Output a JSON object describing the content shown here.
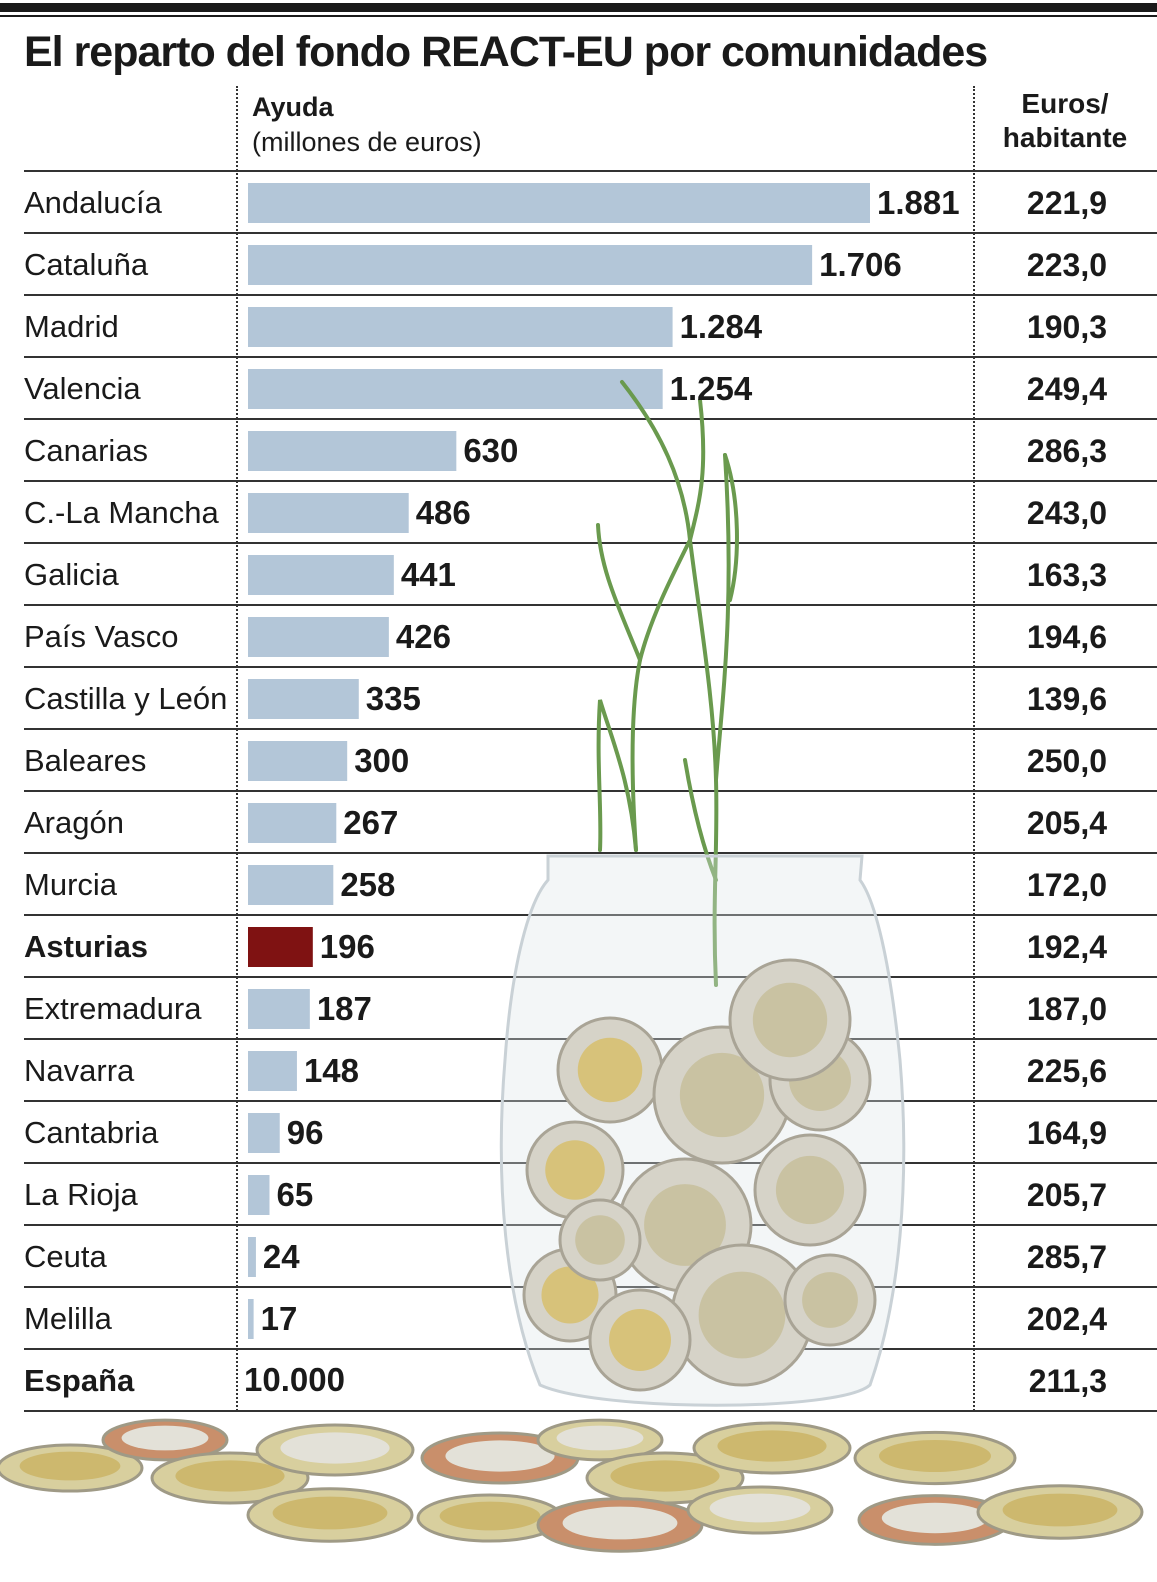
{
  "title": "El reparto del fondo REACT-EU por comunidades",
  "headers": {
    "aid_line1": "Ayuda",
    "aid_line2": "(millones de euros)",
    "percapita_line1": "Euros/",
    "percapita_line2": "habitante"
  },
  "colors": {
    "bar": "#b3c6d8",
    "highlight": "#7f1212",
    "rules": "#333333"
  },
  "chart_data": {
    "type": "bar",
    "orientation": "horizontal",
    "title": "El reparto del fondo REACT-EU por comunidades",
    "xlabel": "Ayuda (millones de euros)",
    "xlim": [
      0,
      1881
    ],
    "categories": [
      "Andalucía",
      "Cataluña",
      "Madrid",
      "Valencia",
      "Canarias",
      "C.-La Mancha",
      "Galicia",
      "País Vasco",
      "Castilla y León",
      "Baleares",
      "Aragón",
      "Murcia",
      "Asturias",
      "Extremadura",
      "Navarra",
      "Cantabria",
      "La Rioja",
      "Ceuta",
      "Melilla"
    ],
    "values": [
      1881,
      1706,
      1284,
      1254,
      630,
      486,
      441,
      426,
      335,
      300,
      267,
      258,
      196,
      187,
      148,
      96,
      65,
      24,
      17
    ],
    "value_labels": [
      "1.881",
      "1.706",
      "1.284",
      "1.254",
      "630",
      "486",
      "441",
      "426",
      "335",
      "300",
      "267",
      "258",
      "196",
      "187",
      "148",
      "96",
      "65",
      "24",
      "17"
    ],
    "per_capita": [
      "221,9",
      "223,0",
      "190,3",
      "249,4",
      "286,3",
      "243,0",
      "163,3",
      "194,6",
      "139,6",
      "250,0",
      "205,4",
      "172,0",
      "192,4",
      "187,0",
      "225,6",
      "164,9",
      "205,7",
      "285,7",
      "202,4"
    ],
    "highlight": "Asturias",
    "total": {
      "label": "España",
      "value": 10000,
      "value_label": "10.000",
      "per_capita": "211,3"
    }
  }
}
